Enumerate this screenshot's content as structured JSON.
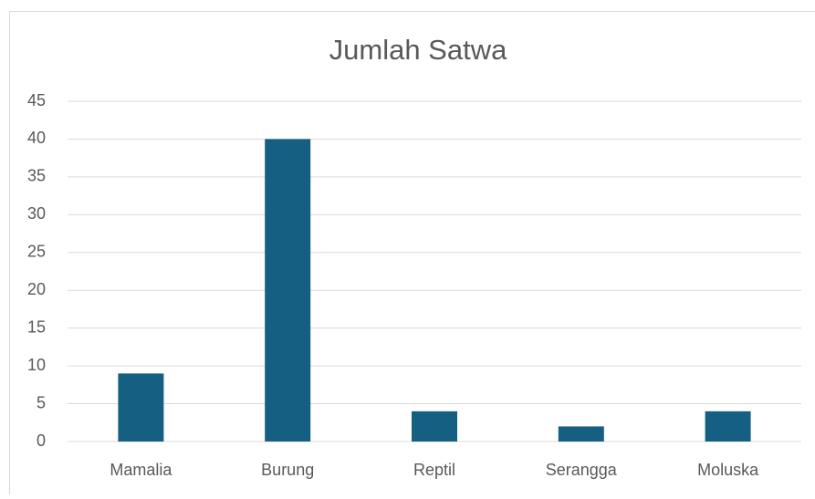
{
  "chart_data": {
    "type": "bar",
    "title": "Jumlah Satwa",
    "categories": [
      "Mamalia",
      "Burung",
      "Reptil",
      "Serangga",
      "Moluska"
    ],
    "values": [
      9,
      40,
      4,
      2,
      4
    ],
    "color": "#156082",
    "ylim": [
      0,
      45
    ],
    "yticks": [
      0,
      5,
      10,
      15,
      20,
      25,
      30,
      35,
      40,
      45
    ],
    "grid": true
  }
}
